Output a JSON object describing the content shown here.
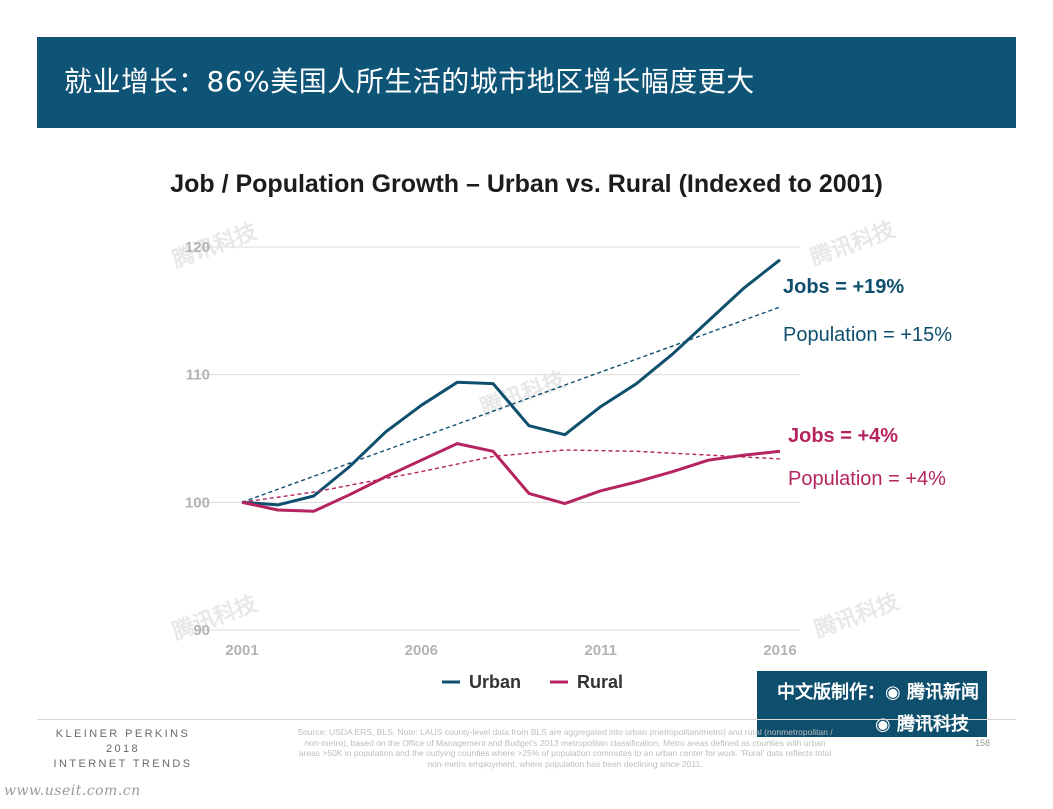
{
  "banner": {
    "title": "就业增长：86%美国人所生活的城市地区增长幅度更大"
  },
  "chart_data": {
    "type": "line",
    "title": "Job / Population Growth – Urban vs. Rural (Indexed to 2001)",
    "xlabel": "",
    "ylabel": "",
    "xlim": [
      2001,
      2016
    ],
    "ylim": [
      90,
      120
    ],
    "x_ticks": [
      2001,
      2006,
      2011,
      2016
    ],
    "y_ticks": [
      90,
      100,
      110,
      120
    ],
    "grid": true,
    "series": [
      {
        "name": "Urban",
        "color": "#0e4f6e",
        "kind": "jobs",
        "x": [
          2001,
          2002,
          2003,
          2004,
          2005,
          2006,
          2007,
          2008,
          2009,
          2010,
          2011,
          2012,
          2013,
          2014,
          2015,
          2016
        ],
        "values": [
          100,
          99.8,
          100.5,
          102.8,
          105.5,
          107.6,
          109.4,
          109.3,
          106.0,
          105.3,
          107.5,
          109.3,
          111.6,
          114.2,
          116.8,
          119.0
        ]
      },
      {
        "name": "Rural",
        "color": "#b5245e",
        "kind": "jobs",
        "x": [
          2001,
          2002,
          2003,
          2004,
          2005,
          2006,
          2007,
          2008,
          2009,
          2010,
          2011,
          2012,
          2013,
          2014,
          2015,
          2016
        ],
        "values": [
          100,
          99.4,
          99.3,
          100.6,
          102.0,
          103.3,
          104.6,
          104.0,
          100.7,
          99.9,
          100.9,
          101.6,
          102.4,
          103.3,
          103.7,
          104.0
        ]
      },
      {
        "name": "",
        "color": "#0e4f6e",
        "kind": "population",
        "x": [
          2001,
          2016
        ],
        "values": [
          100,
          115.3
        ]
      },
      {
        "name": "",
        "color": "#b5245e",
        "kind": "population",
        "x": [
          2001,
          2003,
          2006,
          2008,
          2010,
          2012,
          2014,
          2016
        ],
        "values": [
          100,
          100.8,
          102.4,
          103.6,
          104.1,
          104.0,
          103.7,
          103.4
        ]
      }
    ],
    "annotations": {
      "urban_jobs": "Jobs = +19%",
      "urban_population": "Population = +15%",
      "rural_jobs": "Jobs = +4%",
      "rural_population": "Population = +4%"
    },
    "legend": {
      "placement": "bottom-center",
      "items": [
        "Urban",
        "Rural"
      ]
    }
  },
  "watermark": "腾讯科技",
  "badge": {
    "line1": "中文版制作：◉ 腾讯新闻",
    "line2": "◉ 腾讯科技"
  },
  "footer": {
    "brand_lines": [
      "KLEINER PERKINS",
      "2018",
      "INTERNET TRENDS"
    ],
    "source": "Source: USDA ERS, BLS. Note: LAUS county-level data from BLS are aggregated into urban (metropolitan/metro) and rural (nonmetropolitan / non-metro), based on the Office of Management and Budget's 2013 metropolitan classification. Metro areas defined as counties with urban areas >50K in population and the outlying counties where >25% of population commutes to an urban center for work. 'Rural' data reflects total non-metro employment, where population has been declining since 2011.",
    "page": "158"
  },
  "site": "www.useit.com.cn"
}
